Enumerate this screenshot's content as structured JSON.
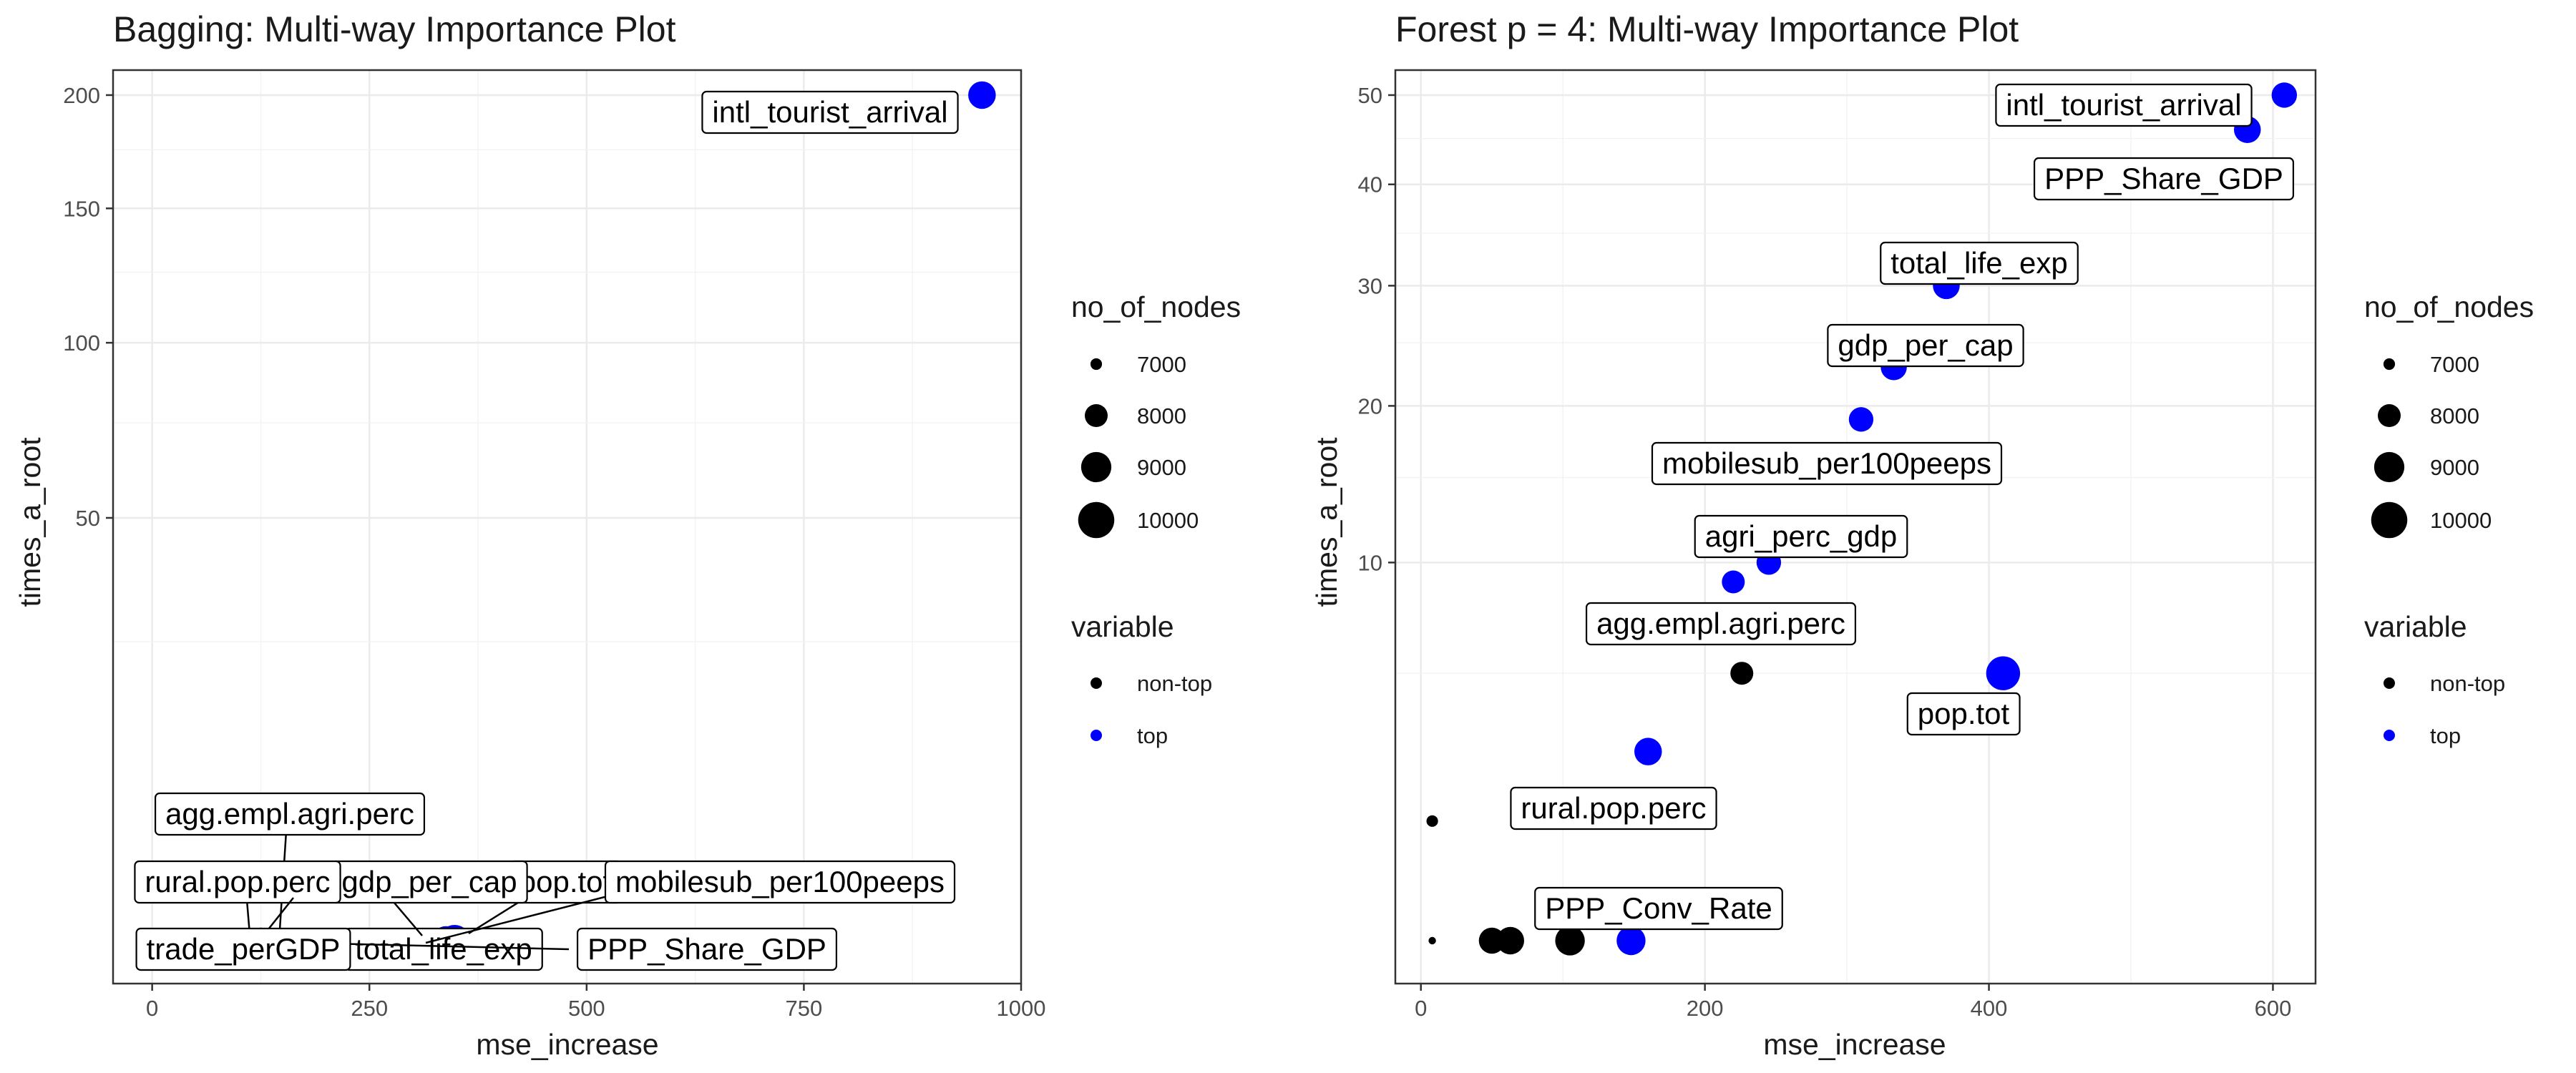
{
  "chart_data": [
    {
      "type": "scatter",
      "title": "Bagging: Multi-way Importance Plot",
      "xlabel": "mse_increase",
      "ylabel": "times_a_root",
      "xlim": [
        -45,
        1000
      ],
      "y_scale": "sqrt",
      "ylim": [
        0,
        212
      ],
      "x_ticks": [
        "0",
        "250",
        "500",
        "750",
        "1000"
      ],
      "x_tick_values": [
        0,
        250,
        500,
        750,
        1000
      ],
      "y_ticks": [
        "50",
        "100",
        "150",
        "200"
      ],
      "y_tick_values": [
        50,
        100,
        150,
        200
      ],
      "grid": true,
      "points": [
        {
          "label": "intl_tourist_arrival",
          "x": 955,
          "y": 200,
          "variable": "top",
          "no_of_nodes": 8600
        },
        {
          "label": "total_life_exp",
          "x": 348,
          "y": 0,
          "variable": "top",
          "no_of_nodes": 9200
        },
        {
          "label": "PPP_Share_GDP",
          "x": 338,
          "y": 0,
          "variable": "top",
          "no_of_nodes": 8800
        },
        {
          "label": "pop.tot",
          "x": 355,
          "y": 0,
          "variable": "top",
          "no_of_nodes": 8500
        },
        {
          "label": "mobilesub_per100peeps",
          "x": 330,
          "y": 0,
          "variable": "top",
          "no_of_nodes": 8000
        },
        {
          "label": "gdp_per_cap",
          "x": 300,
          "y": 0,
          "variable": "top",
          "no_of_nodes": 8000
        },
        {
          "label": "agg.empl.agri.perc",
          "x": 155,
          "y": 0,
          "variable": "top",
          "no_of_nodes": 8200
        },
        {
          "label": "rural.pop.perc",
          "x": 125,
          "y": 0,
          "variable": "top",
          "no_of_nodes": 8400
        },
        {
          "label": "trade_perGDP",
          "x": 95,
          "y": 0,
          "variable": "top",
          "no_of_nodes": 8000
        }
      ]
    },
    {
      "type": "scatter",
      "title": "Forest p = 4: Multi-way Importance Plot",
      "xlabel": "mse_increase",
      "ylabel": "times_a_root",
      "xlim": [
        -18,
        630
      ],
      "y_scale": "sqrt",
      "ylim": [
        0,
        53
      ],
      "x_ticks": [
        "0",
        "200",
        "400",
        "600"
      ],
      "x_tick_values": [
        0,
        200,
        400,
        600
      ],
      "y_ticks": [
        "10",
        "20",
        "30",
        "40",
        "50"
      ],
      "y_tick_values": [
        10,
        20,
        30,
        40,
        50
      ],
      "grid": true,
      "points": [
        {
          "label": "intl_tourist_arrival",
          "x": 608,
          "y": 50,
          "variable": "top",
          "no_of_nodes": 8300
        },
        {
          "label": "PPP_Share_GDP",
          "x": 582,
          "y": 46,
          "variable": "top",
          "no_of_nodes": 8500
        },
        {
          "label": "total_life_exp",
          "x": 370,
          "y": 30,
          "variable": "top",
          "no_of_nodes": 8500
        },
        {
          "label": "gdp_per_cap",
          "x": 333,
          "y": 23,
          "variable": "top",
          "no_of_nodes": 8400
        },
        {
          "label": "mobilesub_per100peeps",
          "x": 310,
          "y": 19,
          "variable": "top",
          "no_of_nodes": 8200
        },
        {
          "label": "agri_perc_gdp",
          "x": 245,
          "y": 10,
          "variable": "top",
          "no_of_nodes": 8200
        },
        {
          "label": "agg.empl.agri.perc",
          "x": 220,
          "y": 9,
          "variable": "top",
          "no_of_nodes": 8000
        },
        {
          "label": "pop.tot",
          "x": 410,
          "y": 5,
          "variable": "top",
          "no_of_nodes": 9600
        },
        {
          "label": "rural.pop.perc",
          "x": 160,
          "y": 2.5,
          "variable": "top",
          "no_of_nodes": 8600
        },
        {
          "label": "PPP_Conv_Rate",
          "x": 148,
          "y": 0,
          "variable": "top",
          "no_of_nodes": 8800
        },
        {
          "label": "",
          "x": 226,
          "y": 5,
          "variable": "non-top",
          "no_of_nodes": 8000
        },
        {
          "label": "",
          "x": 8,
          "y": 1,
          "variable": "non-top",
          "no_of_nodes": 7000
        },
        {
          "label": "",
          "x": 8,
          "y": 0,
          "variable": "non-top",
          "no_of_nodes": 6800
        },
        {
          "label": "",
          "x": 50,
          "y": 0,
          "variable": "non-top",
          "no_of_nodes": 8400
        },
        {
          "label": "",
          "x": 63,
          "y": 0,
          "variable": "non-top",
          "no_of_nodes": 8600
        },
        {
          "label": "",
          "x": 105,
          "y": 0,
          "variable": "non-top",
          "no_of_nodes": 8900
        }
      ]
    }
  ],
  "legend": {
    "size_title": "no_of_nodes",
    "size_items": [
      "7000",
      "8000",
      "9000",
      "10000"
    ],
    "size_values": [
      7000,
      8000,
      9000,
      10000
    ],
    "color_title": "variable",
    "color_items": [
      {
        "label": "non-top",
        "color": "#000000"
      },
      {
        "label": "top",
        "color": "#0000ff"
      }
    ]
  },
  "colors": {
    "top": "#0000ff",
    "non_top": "#000000",
    "grid": "#ebebeb",
    "panel_border": "#333333"
  }
}
